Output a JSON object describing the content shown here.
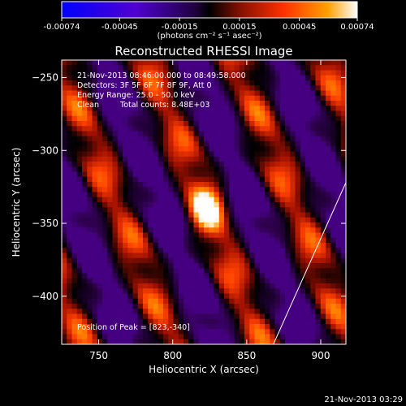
{
  "chart_data": {
    "type": "heatmap",
    "title": "Reconstructed RHESSI Image",
    "xlabel": "Heliocentric X (arcsec)",
    "ylabel": "Heliocentric Y (arcsec)",
    "xlim": [
      725,
      917
    ],
    "ylim": [
      -433,
      -238
    ],
    "x_ticks": [
      750,
      800,
      850,
      900
    ],
    "y_ticks": [
      -250,
      -300,
      -350,
      -400
    ],
    "colorbar": {
      "label": "(photons cm⁻² s⁻¹ asec⁻²)",
      "range": [
        -0.00074,
        0.00074
      ],
      "ticks": [
        "-0.00074",
        "-0.00045",
        "-0.00015",
        "0.00015",
        "0.00045",
        "0.00074"
      ],
      "colors": [
        "#0000ff",
        "#6000c0",
        "#300050",
        "#000000",
        "#a01000",
        "#ff4000",
        "#ffa000",
        "#ffffff"
      ]
    },
    "annotations": {
      "date_range": "21-Nov-2013 08:46:00.000 to 08:49:58.000",
      "detectors": "Detectors: 3F 5F 6F 7F 8F 9F, Att 0",
      "energy_range": "Energy Range: 25.0 - 50.0 keV",
      "method": "Clean",
      "total_counts": "Total counts: 8.48E+03",
      "peak": "Position of Peak = [823,-340]"
    },
    "peak": {
      "x": 823,
      "y": -340
    },
    "grid": false,
    "limb_line": [
      [
        868,
        -433
      ],
      [
        917,
        -322
      ]
    ]
  },
  "footer": {
    "timestamp": "21-Nov-2013 03:29"
  }
}
